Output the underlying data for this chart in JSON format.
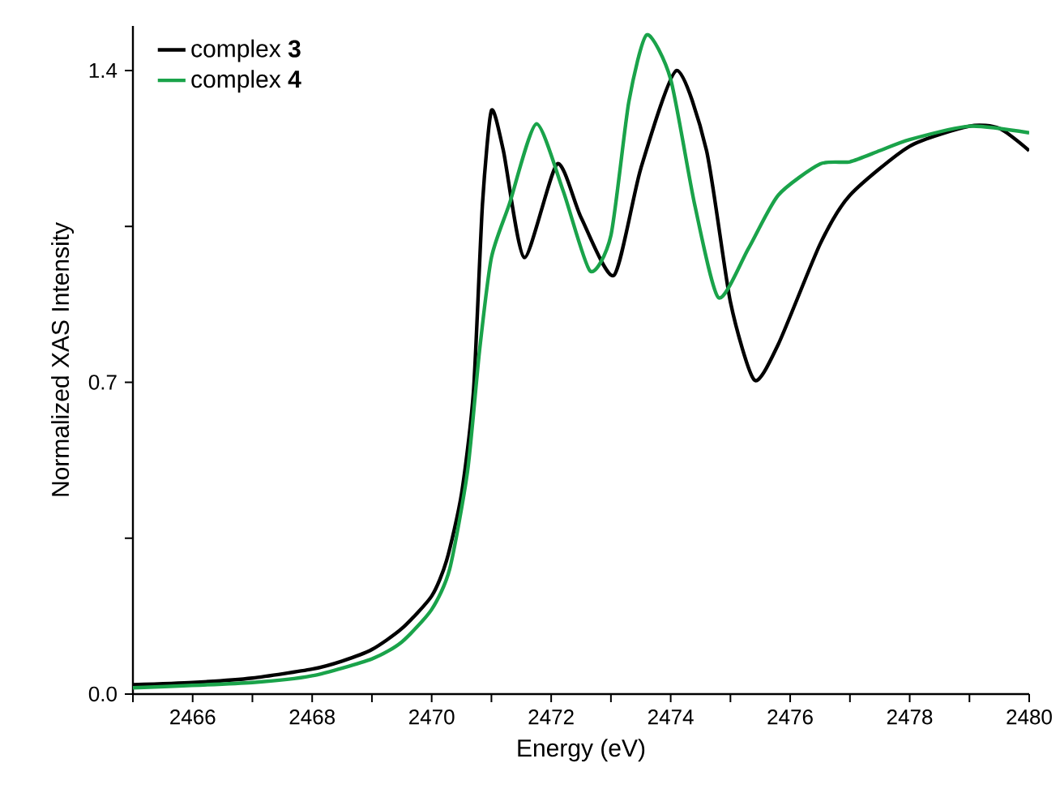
{
  "chart_data": {
    "type": "line",
    "xlabel": "Energy (eV)",
    "ylabel": "Normalized XAS Intensity",
    "xlim": [
      2465,
      2480
    ],
    "ylim": [
      0,
      1.5
    ],
    "xticks": [
      {
        "value": 2465,
        "label": null
      },
      2466,
      {
        "value": 2467,
        "label": null
      },
      2468,
      {
        "value": 2469,
        "label": null
      },
      2470,
      {
        "value": 2471,
        "label": null
      },
      2472,
      {
        "value": 2473,
        "label": null
      },
      2474,
      {
        "value": 2475,
        "label": null
      },
      2476,
      {
        "value": 2477,
        "label": null
      },
      2478,
      {
        "value": 2479,
        "label": null
      },
      2480
    ],
    "yticks": [
      {
        "value": 0,
        "label": "0.0"
      },
      {
        "value": 0.35,
        "label": null
      },
      {
        "value": 0.7,
        "label": "0.7"
      },
      {
        "value": 1.05,
        "label": null
      },
      {
        "value": 1.4,
        "label": "1.4"
      }
    ],
    "legend": "top left",
    "grid": false,
    "marker": "none",
    "line_style": "solid",
    "series": [
      {
        "name": "complex **3**",
        "color": "#000000",
        "x": [
          2465,
          2466,
          2467,
          2468,
          2468.5,
          2469,
          2469.5,
          2470,
          2470.25,
          2470.5,
          2470.7,
          2470.85,
          2471,
          2471.2,
          2471.55,
          2472.1,
          2472.5,
          2473.05,
          2473.5,
          2474.1,
          2474.6,
          2475,
          2475.4,
          2475.8,
          2476.5,
          2477,
          2478,
          2479,
          2479.5,
          2480
        ],
        "values": [
          0.021,
          0.026,
          0.036,
          0.056,
          0.074,
          0.1,
          0.147,
          0.22,
          0.3,
          0.45,
          0.68,
          1.1,
          1.31,
          1.22,
          0.98,
          1.19,
          1.07,
          0.94,
          1.18,
          1.4,
          1.22,
          0.88,
          0.705,
          0.785,
          1.01,
          1.12,
          1.23,
          1.275,
          1.27,
          1.22
        ]
      },
      {
        "name": "complex **4**",
        "color": "#1aa34a",
        "x": [
          2465,
          2467,
          2468,
          2469,
          2469.5,
          2470,
          2470.3,
          2470.6,
          2470.8,
          2471,
          2471.3,
          2471.75,
          2472.2,
          2472.65,
          2473,
          2473.3,
          2473.6,
          2474,
          2474.4,
          2474.8,
          2475.3,
          2475.8,
          2476.5,
          2477,
          2477.5,
          2478,
          2479,
          2480
        ],
        "values": [
          0.014,
          0.026,
          0.041,
          0.079,
          0.117,
          0.19,
          0.28,
          0.5,
          0.77,
          0.98,
          1.1,
          1.28,
          1.13,
          0.95,
          1.03,
          1.33,
          1.48,
          1.38,
          1.1,
          0.89,
          1.0,
          1.12,
          1.19,
          1.195,
          1.22,
          1.245,
          1.275,
          1.26
        ]
      }
    ]
  }
}
